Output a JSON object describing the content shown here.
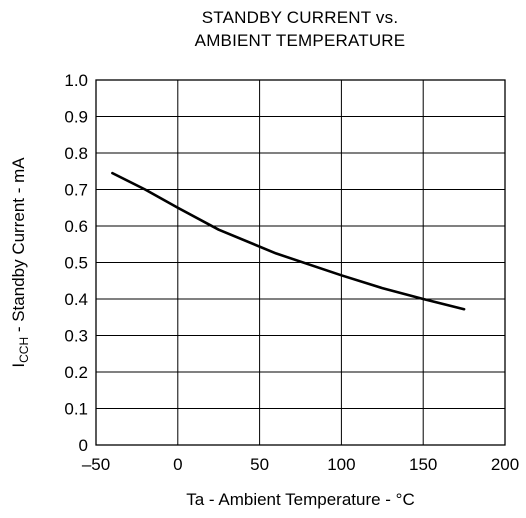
{
  "chart_data": {
    "type": "line",
    "title_line1": "STANDBY CURRENT vs.",
    "title_line2": "AMBIENT TEMPERATURE",
    "xlabel": "Ta - Ambient Temperature - °C",
    "ylabel_main": "I",
    "ylabel_sub": "CCH",
    "ylabel_rest": " - Standby Current - mA",
    "xlim": [
      -50,
      200
    ],
    "ylim": [
      0,
      1.0
    ],
    "x_ticks": [
      -50,
      0,
      50,
      100,
      150,
      200
    ],
    "x_tick_labels": [
      "–50",
      "0",
      "50",
      "100",
      "150",
      "200"
    ],
    "y_ticks": [
      0,
      0.1,
      0.2,
      0.3,
      0.4,
      0.5,
      0.6,
      0.7,
      0.8,
      0.9,
      1.0
    ],
    "y_tick_labels": [
      "0",
      "0.1",
      "0.2",
      "0.3",
      "0.4",
      "0.5",
      "0.6",
      "0.7",
      "0.8",
      "0.9",
      "1.0"
    ],
    "grid": true,
    "series": [
      {
        "x": [
          -40,
          -20,
          0,
          25,
          60,
          100,
          125,
          150,
          175
        ],
        "values": [
          0.745,
          0.7,
          0.65,
          0.59,
          0.525,
          0.465,
          0.43,
          0.4,
          0.372
        ]
      }
    ],
    "line_color": "#000000"
  }
}
